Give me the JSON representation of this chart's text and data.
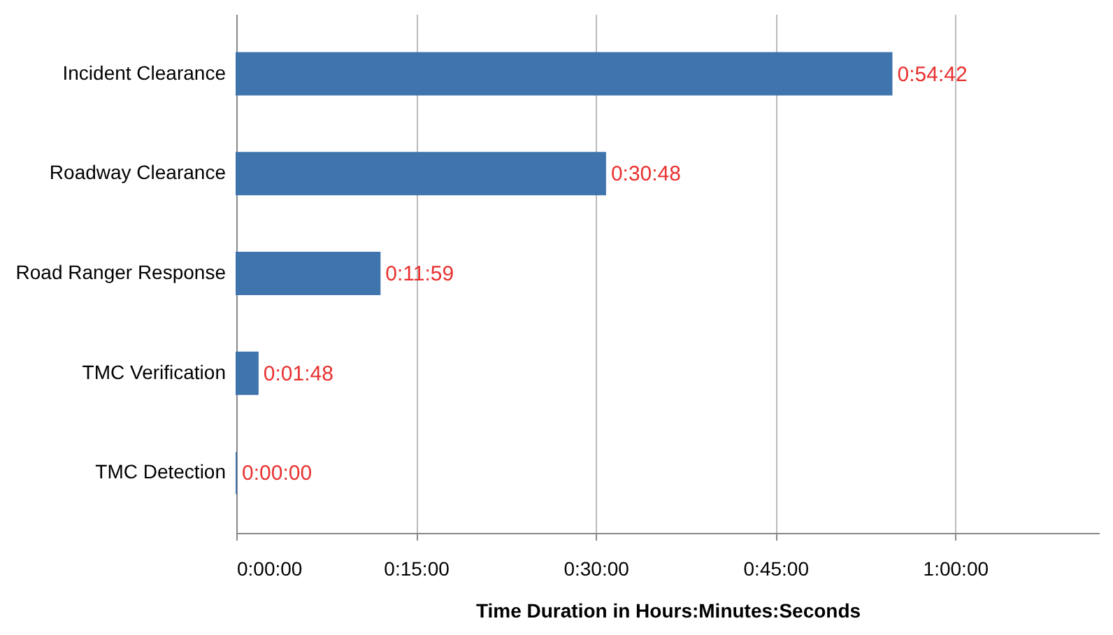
{
  "chart_data": {
    "type": "bar",
    "orientation": "horizontal",
    "xlabel": "Time Duration  in Hours:Minutes:Seconds",
    "categories": [
      "Incident Clearance",
      "Roadway Clearance",
      "Road Ranger Response",
      "TMC Verification",
      "TMC Detection"
    ],
    "values": [
      54.7,
      30.8,
      11.98,
      1.8,
      0
    ],
    "value_labels": [
      "0:54:42",
      "0:30:48",
      "0:11:59",
      "0:01:48",
      "0:00:00"
    ],
    "color": "#3f74ad",
    "xlim": [
      0,
      72
    ],
    "xticks": [
      {
        "value": 0,
        "label": "0:00:00"
      },
      {
        "value": 15,
        "label": "0:15:00"
      },
      {
        "value": 30,
        "label": "0:30:00"
      },
      {
        "value": 45,
        "label": "0:45:00"
      },
      {
        "value": 60,
        "label": "1:00:00"
      }
    ],
    "grid": "x"
  }
}
